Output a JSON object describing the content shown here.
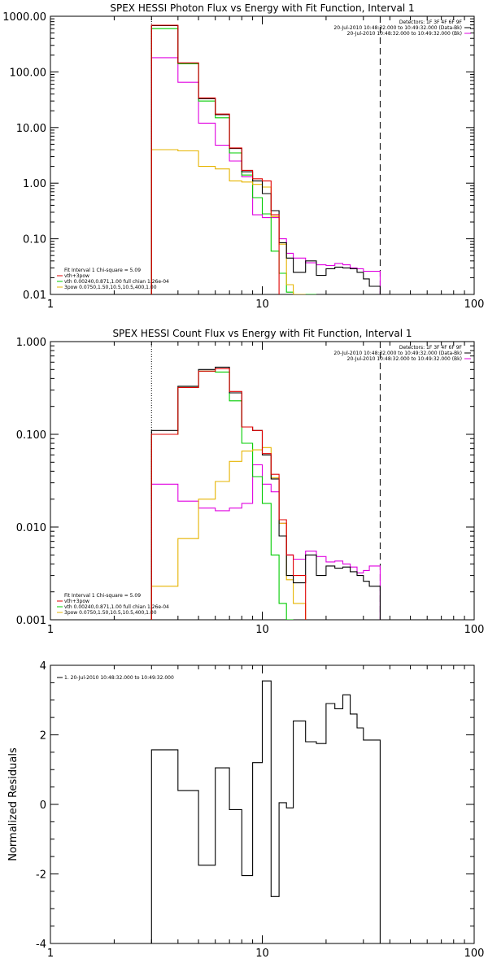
{
  "chart_data": [
    {
      "type": "line",
      "title": "SPEX HESSI Photon Flux vs Energy with Fit Function, Interval 1",
      "xlabel": "",
      "ylabel": "",
      "xscale": "log",
      "yscale": "log",
      "xlim": [
        1,
        100
      ],
      "ylim": [
        0.01,
        1000
      ],
      "xticks": [
        "1",
        "10",
        "100"
      ],
      "yticks": [
        "1000.00",
        "100.00",
        "10.00",
        "1.00",
        "0.10",
        "0.01"
      ],
      "grid": false,
      "vlines": {
        "dotted_x": 3,
        "dashed_x": 36
      },
      "header_lines": [
        "Detectors: 1F 3F 4F 6F 9F",
        "20-Jul-2010 10:48:32.000 to 10:49:32.000 (Data-Bk)",
        "20-Jul-2010 10:48:32.000 to 10:49:32.000 (Bk)"
      ],
      "legend_lines": [
        "Fit Interval 1   Chi-square = 5.09",
        "vth+3pow",
        "vth 0.00240,0.871,1.00   full chian 1.26e-04",
        "3pow 0.0750,1.50,10.5,10.5,400,1.00"
      ],
      "colors": {
        "data": "#000000",
        "bk": "#e000e0",
        "total": "#e00000",
        "vth": "#00cc00",
        "pow": "#e6b400"
      },
      "edges": [
        3,
        4,
        5,
        6,
        7,
        8,
        9,
        10,
        11,
        12,
        13,
        14,
        16,
        18,
        20,
        22,
        24,
        26,
        28,
        30,
        32,
        36
      ],
      "series": [
        {
          "values": [
            680,
            145,
            33,
            17,
            4.2,
            1.6,
            1.1,
            0.65,
            0.32,
            0.085,
            0.045,
            0.025,
            0.04,
            0.022,
            0.029,
            0.031,
            0.03,
            0.029,
            0.025,
            0.019,
            0.014
          ]
        },
        {
          "values": [
            180,
            65,
            12,
            4.8,
            2.5,
            1.3,
            0.27,
            0.24,
            0.24,
            0.1,
            0.055,
            0.045,
            0.037,
            0.034,
            0.033,
            0.036,
            0.034,
            0.03,
            0.029,
            0.026,
            0.026
          ]
        },
        {
          "values": [
            690,
            145,
            34,
            17.5,
            4.3,
            1.7,
            1.2,
            1.1,
            0.27,
            null,
            null,
            null,
            null,
            null,
            null,
            null,
            null,
            null,
            null,
            null,
            null
          ]
        },
        {
          "values": [
            600,
            140,
            30,
            15,
            3.5,
            1.4,
            0.55,
            0.28,
            0.06,
            0.024,
            0.011,
            0.008,
            0.006,
            null,
            null,
            null,
            null,
            null,
            null,
            null,
            null
          ]
        },
        {
          "values": [
            4,
            3.8,
            2,
            1.8,
            1.1,
            1.05,
            0.95,
            0.85,
            0.25,
            0.08,
            0.015,
            0.008,
            null,
            null,
            null,
            null,
            null,
            null,
            null,
            null,
            null
          ]
        }
      ]
    },
    {
      "type": "line",
      "title": "SPEX HESSI Count Flux vs Energy with Fit Function, Interval 1",
      "xlabel": "",
      "ylabel": "",
      "xscale": "log",
      "yscale": "log",
      "xlim": [
        1,
        100
      ],
      "ylim": [
        0.001,
        1
      ],
      "xticks": [
        "1",
        "10",
        "100"
      ],
      "yticks": [
        "1.000",
        "0.100",
        "0.010",
        "0.001"
      ],
      "grid": false,
      "vlines": {
        "dotted_x": 3,
        "dashed_x": 36
      },
      "header_lines": [
        "Detectors: 1F 3F 4F 6F 9F",
        "20-Jul-2010 10:48:32.000 to 10:49:32.000 (Data-Bk)",
        "20-Jul-2010 10:48:32.000 to 10:49:32.000 (Bk)"
      ],
      "legend_lines": [
        "Fit Interval 1   Chi-square = 5.09",
        "vth+3pow",
        "vth 0.00240,0.871,1.00   full chian 1.26e-04",
        "3pow 0.0750,1.50,10.5,10.5,400,1.00"
      ],
      "colors": {
        "data": "#000000",
        "bk": "#e000e0",
        "total": "#e00000",
        "vth": "#00cc00",
        "pow": "#e6b400"
      },
      "edges": [
        3,
        4,
        5,
        6,
        7,
        8,
        9,
        10,
        11,
        12,
        13,
        14,
        16,
        18,
        20,
        22,
        24,
        26,
        28,
        30,
        32,
        36
      ],
      "series": [
        {
          "values": [
            0.11,
            0.33,
            0.5,
            0.53,
            0.28,
            0.12,
            0.11,
            0.06,
            0.033,
            0.008,
            0.003,
            0.0025,
            0.005,
            0.003,
            0.0038,
            0.0036,
            0.0037,
            0.0033,
            0.003,
            0.0026,
            0.0023
          ]
        },
        {
          "values": [
            0.029,
            0.019,
            0.016,
            0.015,
            0.016,
            0.018,
            0.047,
            0.029,
            0.024,
            0.011,
            0.005,
            0.0045,
            0.0055,
            0.0048,
            0.0042,
            0.0043,
            0.004,
            0.0037,
            0.0032,
            0.0034,
            0.0038
          ]
        },
        {
          "values": [
            0.1,
            0.32,
            0.48,
            0.51,
            0.29,
            0.12,
            0.11,
            0.062,
            0.037,
            0.012,
            0.005,
            0.003,
            null,
            null,
            null,
            null,
            null,
            null,
            null,
            null,
            null
          ]
        },
        {
          "values": [
            0.1,
            0.32,
            0.48,
            0.47,
            0.23,
            0.08,
            0.035,
            0.018,
            0.005,
            0.0015,
            0.001,
            null,
            null,
            null,
            null,
            null,
            null,
            null,
            null,
            null,
            null
          ]
        },
        {
          "values": [
            0.0023,
            0.0075,
            0.02,
            0.031,
            0.051,
            0.066,
            0.068,
            0.072,
            0.034,
            0.011,
            0.0027,
            0.0015,
            null,
            null,
            null,
            null,
            null,
            null,
            null,
            null,
            null
          ]
        }
      ]
    },
    {
      "type": "line",
      "title": "",
      "xlabel": "",
      "ylabel": "Normalized Residuals",
      "xscale": "log",
      "yscale": "linear",
      "xlim": [
        1,
        100
      ],
      "ylim": [
        -4,
        4
      ],
      "xticks": [
        "1",
        "10",
        "100"
      ],
      "yticks": [
        "4",
        "2",
        "0",
        "-2",
        "-4"
      ],
      "grid": false,
      "legend_lines": [
        "1. 20-Jul-2010 10:48:32.000 to 10:49:32.000"
      ],
      "colors": {
        "data": "#000000"
      },
      "edges": [
        3,
        4,
        5,
        6,
        7,
        8,
        9,
        10,
        11,
        12,
        13,
        14,
        16,
        18,
        20,
        22,
        24,
        26,
        28,
        30,
        32,
        36
      ],
      "series": [
        {
          "values": [
            1.57,
            0.4,
            -1.75,
            1.05,
            -0.15,
            -2.05,
            1.2,
            3.55,
            -2.65,
            0.05,
            -0.1,
            2.4,
            1.8,
            1.75,
            2.9,
            2.75,
            3.15,
            2.6,
            2.2,
            1.85,
            1.85
          ]
        }
      ]
    }
  ]
}
